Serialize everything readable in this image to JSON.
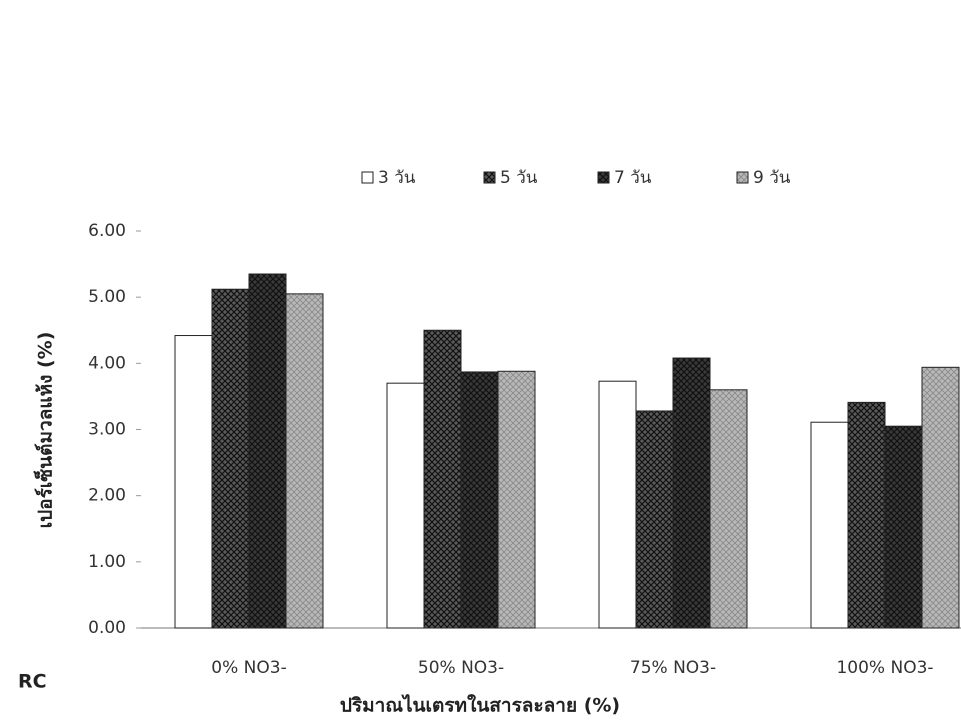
{
  "chart_data": {
    "type": "bar",
    "categories": [
      "0% NO3-",
      "50% NO3-",
      "75% NO3-",
      "100% NO3-"
    ],
    "series": [
      {
        "name": "3 วัน",
        "color": "#ffffff",
        "values": [
          4.42,
          3.7,
          3.73,
          3.11
        ]
      },
      {
        "name": "5 วัน",
        "color": "#5a5a5a",
        "values": [
          5.12,
          4.5,
          3.28,
          3.41
        ]
      },
      {
        "name": "7 วัน",
        "color": "#3a3a3a",
        "values": [
          5.35,
          3.87,
          4.08,
          3.05
        ]
      },
      {
        "name": "9 วัน",
        "color": "#b8b8b8",
        "values": [
          5.05,
          3.88,
          3.6,
          3.94
        ]
      }
    ],
    "ylim": [
      0,
      6
    ],
    "yticks": [
      {
        "value": 0,
        "label": "0.00"
      },
      {
        "value": 1,
        "label": "1.00"
      },
      {
        "value": 2,
        "label": "2.00"
      },
      {
        "value": 3,
        "label": "3.00"
      },
      {
        "value": 4,
        "label": "4.00"
      },
      {
        "value": 5,
        "label": "5.00"
      },
      {
        "value": 6,
        "label": "6.00"
      }
    ],
    "xlabel": "ปริมาณไนเตรทในสารละลาย (%)",
    "ylabel": "เปอร์เซ็นต์มวลแห้ง (%)",
    "annotation": "RC",
    "grid": false
  }
}
